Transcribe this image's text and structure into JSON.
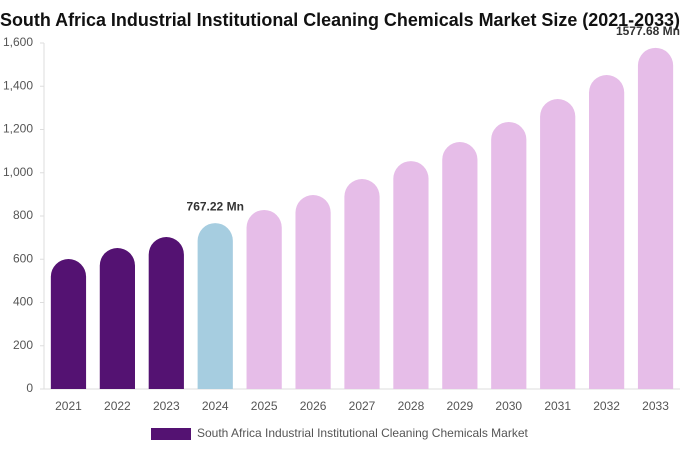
{
  "chart_data": {
    "type": "bar",
    "title": "South Africa Industrial Institutional Cleaning Chemicals Market Size (2021-2033)",
    "categories": [
      "2021",
      "2022",
      "2023",
      "2024",
      "2025",
      "2026",
      "2027",
      "2028",
      "2029",
      "2030",
      "2031",
      "2032",
      "2033"
    ],
    "series": [
      {
        "name": "South Africa Industrial Institutional Cleaning Chemicals Market",
        "color": "#541272",
        "values": [
          601,
          652,
          703,
          767.22,
          828,
          897,
          971,
          1054,
          1142,
          1235,
          1341,
          1452,
          1577.68
        ],
        "value_labels": [
          null,
          null,
          null,
          "767.22 Mn",
          null,
          null,
          null,
          null,
          null,
          null,
          null,
          null,
          "1577.68 Mn"
        ],
        "bar_colors": [
          "#541272",
          "#541272",
          "#541272",
          "#a6cde0",
          "#e6bde8",
          "#e6bde8",
          "#e6bde8",
          "#e6bde8",
          "#e6bde8",
          "#e6bde8",
          "#e6bde8",
          "#e6bde8",
          "#e6bde8"
        ]
      }
    ],
    "ylim": [
      0,
      1600
    ],
    "yticks": [
      0,
      200,
      400,
      600,
      800,
      {
        "value": 1000,
        "label": "1,000"
      },
      {
        "value": 1200,
        "label": "1,200"
      },
      {
        "value": 1400,
        "label": "1,400"
      },
      {
        "value": 1600,
        "label": "1,600"
      }
    ],
    "grid": false
  }
}
